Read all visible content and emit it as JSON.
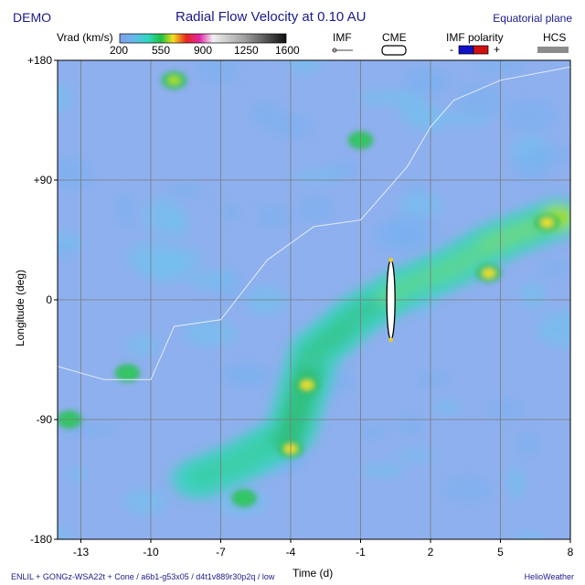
{
  "header": {
    "demo_label": "DEMO",
    "title": "Radial Flow Velocity at 0.10 AU",
    "plane_label": "Equatorial plane"
  },
  "legend": {
    "colorbar_label": "Vrad (km/s)",
    "colorbar_ticks": [
      "200",
      "550",
      "900",
      "1250",
      "1600"
    ],
    "imf_label": "IMF",
    "cme_label": "CME",
    "imf_polarity_label": "IMF polarity",
    "polarity_minus": "-",
    "polarity_plus": "+",
    "hcs_label": "HCS",
    "colors": {
      "polarity_negative": "#1010c8",
      "polarity_positive": "#d01010",
      "hcs": "#8c8c8c"
    }
  },
  "footer": {
    "model_info": "ENLIL + GONGz-WSA22t + Cone / a6b1-g53x05 / d4t1v889r30p2q / low",
    "brand": "HelioWeather"
  },
  "chart_data": {
    "type": "heatmap",
    "title": "Radial Flow Velocity at 0.10 AU",
    "xlabel": "Time (d)",
    "ylabel": "Longitude (deg)",
    "xlim": [
      -14,
      8
    ],
    "ylim": [
      -180,
      180
    ],
    "x_ticks": [
      "-13",
      "-10",
      "-7",
      "-4",
      "-1",
      "2",
      "5",
      "8"
    ],
    "y_ticks": [
      "+180",
      "+90",
      "0",
      "-90",
      "-180"
    ],
    "colorbar": {
      "min": 200,
      "max": 1600,
      "unit": "km/s"
    },
    "grid": true,
    "background_speed": 350,
    "fast_stream": [
      {
        "t": -8,
        "lon": -135,
        "speed": 480
      },
      {
        "t": -6,
        "lon": -120,
        "speed": 500
      },
      {
        "t": -4,
        "lon": -100,
        "speed": 540
      },
      {
        "t": -3,
        "lon": -40,
        "speed": 560
      },
      {
        "t": -1,
        "lon": -10,
        "speed": 560
      },
      {
        "t": 1,
        "lon": 10,
        "speed": 580
      },
      {
        "t": 3,
        "lon": 25,
        "speed": 580
      },
      {
        "t": 5,
        "lon": 45,
        "speed": 580
      },
      {
        "t": 8,
        "lon": 65,
        "speed": 580
      }
    ],
    "hot_spots": [
      {
        "t": -9,
        "lon": 165,
        "speed": 560
      },
      {
        "t": -11,
        "lon": -55,
        "speed": 500
      },
      {
        "t": -3.3,
        "lon": -64,
        "speed": 600
      },
      {
        "t": -4,
        "lon": -112,
        "speed": 580
      },
      {
        "t": -13.5,
        "lon": -90,
        "speed": 500
      },
      {
        "t": 7,
        "lon": 58,
        "speed": 600
      },
      {
        "t": 4.5,
        "lon": 20,
        "speed": 600
      },
      {
        "t": -6,
        "lon": -149,
        "speed": 500
      },
      {
        "t": -1,
        "lon": 120,
        "speed": 470
      }
    ],
    "hcs_line": [
      {
        "t": -14,
        "lon": -50
      },
      {
        "t": -12,
        "lon": -60
      },
      {
        "t": -10,
        "lon": -60
      },
      {
        "t": -9,
        "lon": -20
      },
      {
        "t": -7,
        "lon": -15
      },
      {
        "t": -5,
        "lon": 30
      },
      {
        "t": -3,
        "lon": 55
      },
      {
        "t": -1,
        "lon": 60
      },
      {
        "t": 1,
        "lon": 100
      },
      {
        "t": 2,
        "lon": 130
      },
      {
        "t": 3,
        "lon": 150
      },
      {
        "t": 5,
        "lon": 165
      },
      {
        "t": 8,
        "lon": 175
      }
    ],
    "cme": {
      "t": 0.3,
      "lon_min": -30,
      "lon_max": 30
    }
  }
}
